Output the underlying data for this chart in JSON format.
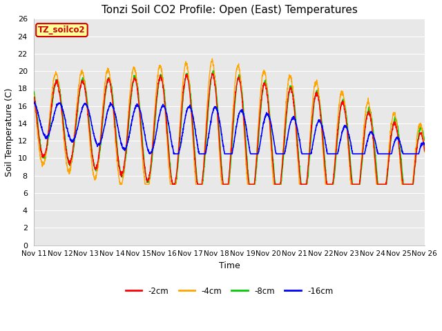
{
  "title": "Tonzi Soil CO2 Profile: Open (East) Temperatures",
  "xlabel": "Time",
  "ylabel": "Soil Temperature (C)",
  "legend_label": "TZ_soilco2",
  "series_labels": [
    "-2cm",
    "-4cm",
    "-8cm",
    "-16cm"
  ],
  "series_colors": [
    "#ff0000",
    "#ffa500",
    "#00cc00",
    "#0000ff"
  ],
  "ylim": [
    0,
    26
  ],
  "yticks": [
    0,
    2,
    4,
    6,
    8,
    10,
    12,
    14,
    16,
    18,
    20,
    22,
    24,
    26
  ],
  "xtick_labels": [
    "Nov 11",
    "Nov 12",
    "Nov 13",
    "Nov 14",
    "Nov 15",
    "Nov 16",
    "Nov 17",
    "Nov 18",
    "Nov 19",
    "Nov 20",
    "Nov 21",
    "Nov 22",
    "Nov 23",
    "Nov 24",
    "Nov 25",
    "Nov 26"
  ],
  "background_color": "#ffffff",
  "plot_bg_color": "#e8e8e8",
  "grid_color": "#ffffff",
  "title_fontsize": 11,
  "axis_fontsize": 8
}
